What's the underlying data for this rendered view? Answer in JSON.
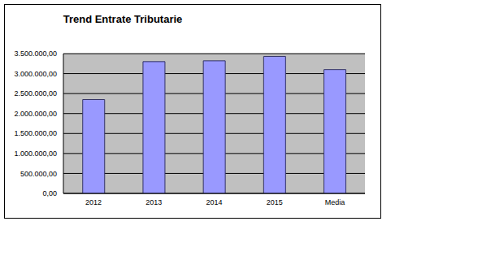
{
  "chart_data": {
    "type": "bar",
    "title": "Trend Entrate Tributarie",
    "categories": [
      "2012",
      "2013",
      "2014",
      "2015",
      "Media"
    ],
    "values": [
      2350000,
      3300000,
      3320000,
      3430000,
      3100000
    ],
    "color": "#9999ff",
    "ylim": [
      0,
      3500000
    ],
    "yticks": [
      {
        "value": 0,
        "label": "0,00"
      },
      {
        "value": 500000,
        "label": "500.000,00"
      },
      {
        "value": 1000000,
        "label": "1.000.000,00"
      },
      {
        "value": 1500000,
        "label": "1.500.000,00"
      },
      {
        "value": 2000000,
        "label": "2.000.000,00"
      },
      {
        "value": 2500000,
        "label": "2.500.000,00"
      },
      {
        "value": 3000000,
        "label": "3.000.000,00"
      },
      {
        "value": 3500000,
        "label": "3.500.000,00"
      }
    ],
    "grid": true
  }
}
